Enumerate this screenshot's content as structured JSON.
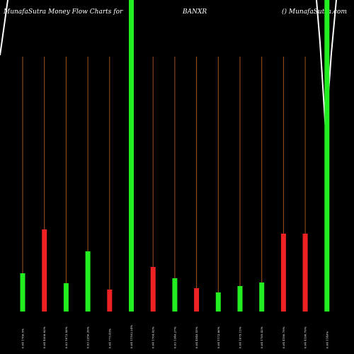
{
  "chart_data": {
    "type": "bar",
    "title": "MunafaSutra  Money Flow  Charts for",
    "symbol": "BANXR",
    "source": "() MunafaSutra.com",
    "categories": [
      "0.04 1766.5%",
      "0.04 4508.92%",
      "0.03 1073.58%",
      "0.03 2356.39%",
      "0.04 773.45%",
      "0.04 11162.24%",
      "0.04 1764.42%",
      "0.03 1346.27%",
      "0.04 4548.55%",
      "0.04 1172.86%",
      "0.04 1679.15%",
      "0.04 1785.42%",
      "0.04 4190.79%",
      "0.04 4190.79%",
      "0.04 1146%"
    ],
    "values": [
      54,
      116,
      40,
      85,
      31,
      440,
      63,
      47,
      33,
      27,
      36,
      41,
      110,
      110,
      440
    ],
    "colors": [
      "#22ee22",
      "#ee2222",
      "#22ee22",
      "#22ee22",
      "#ee2222",
      "#22ee22",
      "#ee2222",
      "#22ee22",
      "#ee2222",
      "#22ee22",
      "#22ee22",
      "#22ee22",
      "#ee2222",
      "#ee2222",
      "#22ee22"
    ],
    "ylim": [
      0,
      440
    ]
  }
}
